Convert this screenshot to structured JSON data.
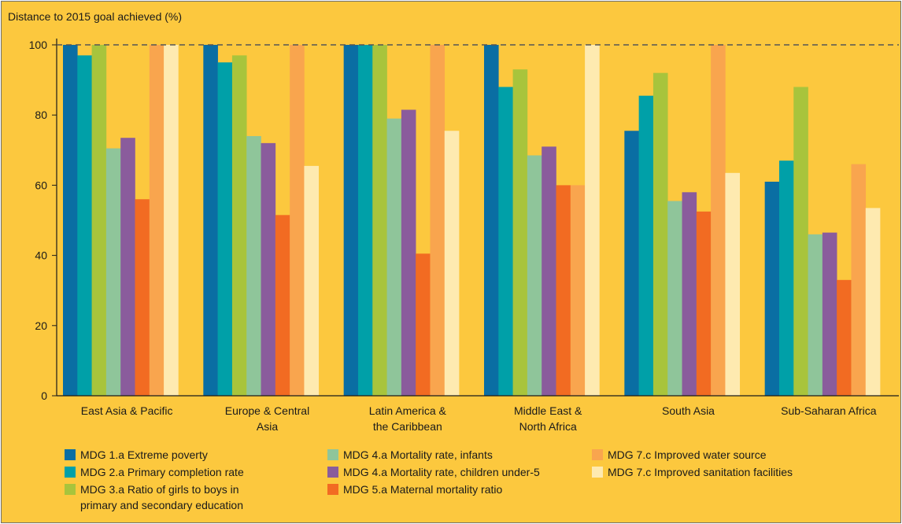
{
  "chart_data": {
    "type": "bar",
    "ylabel": "Distance to 2015 goal achieved (%)",
    "ylim": [
      0,
      100
    ],
    "yticks": [
      0,
      20,
      40,
      60,
      80,
      100
    ],
    "reference_line": 100,
    "categories": [
      [
        "East Asia & Pacific"
      ],
      [
        "Europe & Central",
        "Asia"
      ],
      [
        "Latin America &",
        "the Caribbean"
      ],
      [
        "Middle East &",
        "North Africa"
      ],
      [
        "South Asia"
      ],
      [
        "Sub-Saharan Africa"
      ]
    ],
    "series": [
      {
        "name": "MDG 1.a Extreme poverty",
        "color": "#0a6ea3",
        "values": [
          100,
          100,
          100,
          100,
          75.5,
          61
        ]
      },
      {
        "name": "MDG 2.a Primary completion rate",
        "color": "#00a0a8",
        "values": [
          97,
          95,
          100,
          88,
          85.5,
          67
        ]
      },
      {
        "name": "MDG 3.a Ratio of girls to boys in primary and secondary education",
        "legend_lines": [
          "MDG 3.a Ratio of girls to boys in",
          "primary and secondary education"
        ],
        "color": "#a8c43c",
        "values": [
          100,
          97,
          100,
          93,
          92,
          88
        ]
      },
      {
        "name": "MDG 4.a Mortality rate, infants",
        "color": "#8fc59a",
        "values": [
          70.5,
          74,
          79,
          68.5,
          55.5,
          46
        ]
      },
      {
        "name": "MDG 4.a Mortality rate, children under-5",
        "color": "#8a5c9c",
        "values": [
          73.5,
          72,
          81.5,
          71,
          58,
          46.5
        ]
      },
      {
        "name": "MDG 5.a Maternal mortality ratio",
        "color": "#f26b22",
        "values": [
          56,
          51.5,
          40.5,
          60,
          52.5,
          33
        ]
      },
      {
        "name": "MDG 7.c Improved water source",
        "color": "#f9a54e",
        "values": [
          100,
          100,
          100,
          60,
          100,
          66
        ]
      },
      {
        "name": "MDG 7.c Improved sanitation facilities",
        "color": "#feeab0",
        "values": [
          100,
          65.5,
          75.5,
          100,
          63.5,
          53.5
        ]
      }
    ],
    "grid": false,
    "legend_position": "bottom"
  }
}
